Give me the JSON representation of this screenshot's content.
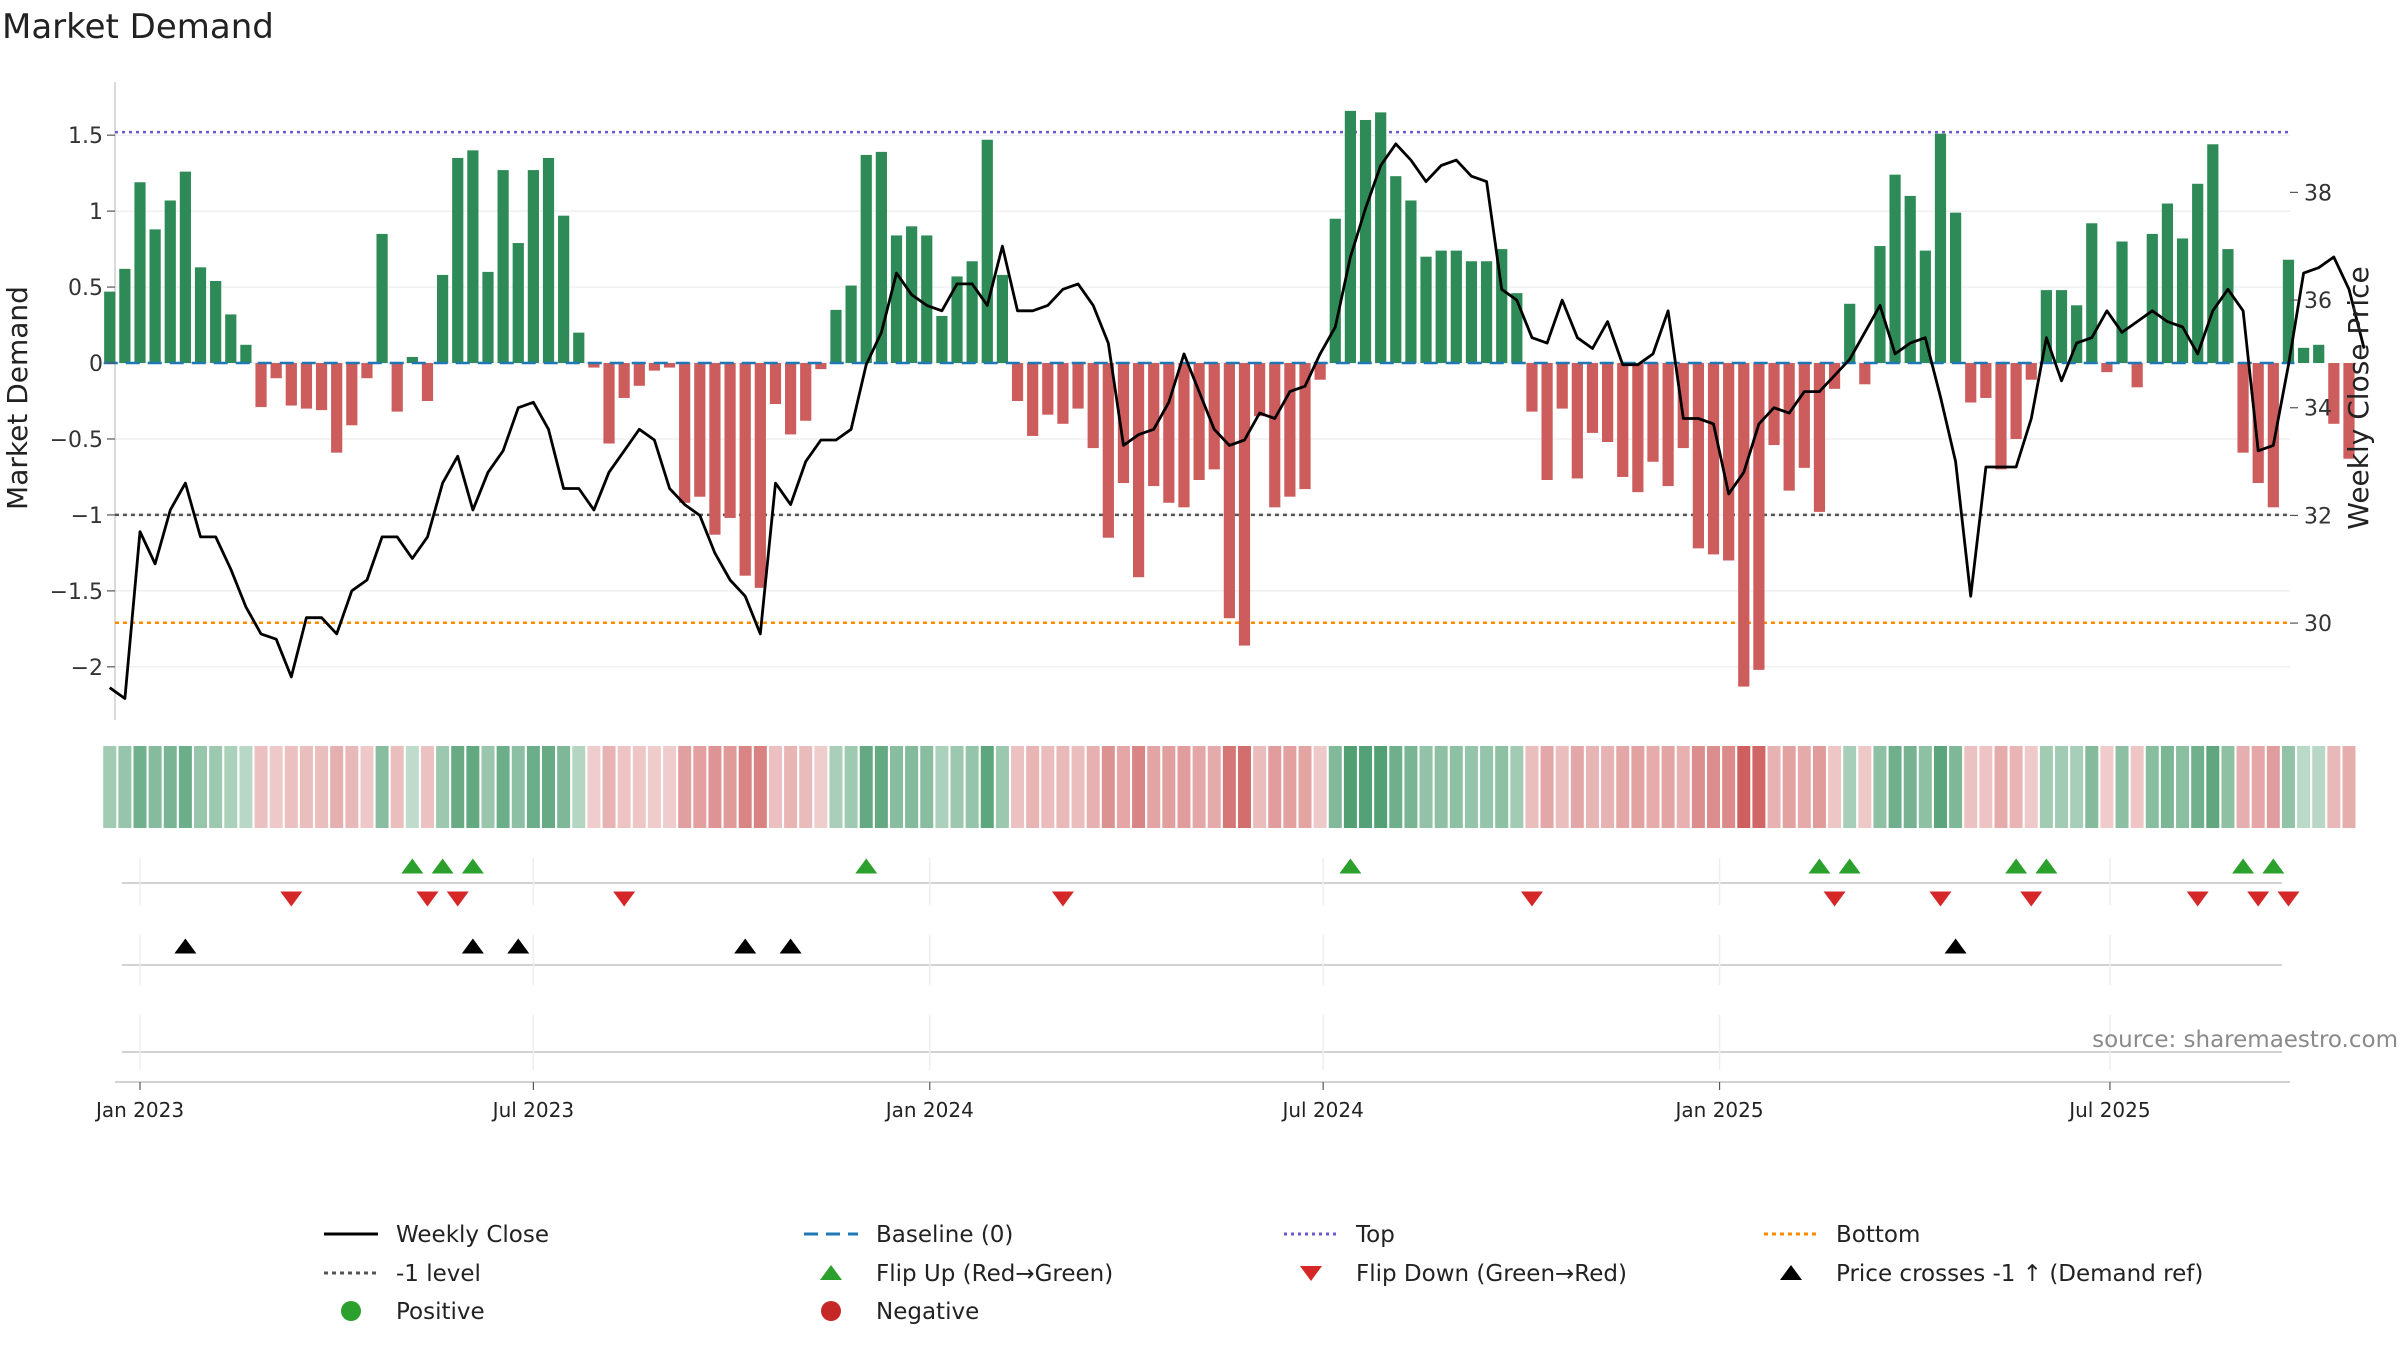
{
  "chart_data": {
    "type": "bar",
    "title": "Market Demand",
    "ylabel": "Market Demand",
    "y2label": "Weekly Close Price",
    "ylim": [
      -2.35,
      1.85
    ],
    "y2lim": [
      28.2,
      40.05
    ],
    "yticks": [
      {
        "v": 1.5,
        "label": "1.5"
      },
      {
        "v": 1,
        "label": "1"
      },
      {
        "v": 0.5,
        "label": "0.5"
      },
      {
        "v": 0,
        "label": "0"
      },
      {
        "v": -0.5,
        "label": "−0.5"
      },
      {
        "v": -1,
        "label": "−1"
      },
      {
        "v": -1.5,
        "label": "−1.5"
      },
      {
        "v": -2,
        "label": "−2"
      }
    ],
    "y2ticks": [
      {
        "v": 38,
        "label": "38"
      },
      {
        "v": 36,
        "label": "36"
      },
      {
        "v": 34,
        "label": "34"
      },
      {
        "v": 32,
        "label": "32"
      },
      {
        "v": 30,
        "label": "30"
      }
    ],
    "x_start_week": -2,
    "x_end_week": 142,
    "date_ticks": [
      {
        "week": 0,
        "label": "Jan 2023"
      },
      {
        "week": 26,
        "label": "Jul 2023"
      },
      {
        "week": 52.2,
        "label": "Jan 2024"
      },
      {
        "week": 78.2,
        "label": "Jul 2024"
      },
      {
        "week": 104.4,
        "label": "Jan 2025"
      },
      {
        "week": 130.2,
        "label": "Jul 2025"
      }
    ],
    "top_level": 1.52,
    "bottom_level": -1.71,
    "minus_one_level": -1,
    "demand": [
      0.47,
      0.62,
      1.19,
      0.88,
      1.07,
      1.26,
      0.63,
      0.54,
      0.32,
      0.12,
      -0.29,
      -0.1,
      -0.28,
      -0.3,
      -0.31,
      -0.59,
      -0.41,
      -0.1,
      0.85,
      -0.32,
      0.04,
      -0.25,
      0.58,
      1.35,
      1.4,
      0.6,
      1.27,
      0.79,
      1.27,
      1.35,
      0.97,
      0.2,
      -0.03,
      -0.53,
      -0.23,
      -0.15,
      -0.05,
      -0.03,
      -0.92,
      -0.88,
      -1.13,
      -1.02,
      -1.4,
      -1.48,
      -0.27,
      -0.47,
      -0.38,
      -0.04,
      0.35,
      0.51,
      1.37,
      1.39,
      0.84,
      0.9,
      0.84,
      0.31,
      0.57,
      0.67,
      1.47,
      0.58,
      -0.25,
      -0.48,
      -0.34,
      -0.4,
      -0.3,
      -0.56,
      -1.15,
      -0.79,
      -1.41,
      -0.81,
      -0.92,
      -0.95,
      -0.77,
      -0.7,
      -1.68,
      -1.86,
      -0.35,
      -0.95,
      -0.88,
      -0.83,
      -0.11,
      0.95,
      1.66,
      1.6,
      1.65,
      1.23,
      1.07,
      0.7,
      0.74,
      0.74,
      0.67,
      0.67,
      0.75,
      0.46,
      -0.32,
      -0.77,
      -0.3,
      -0.76,
      -0.46,
      -0.52,
      -0.75,
      -0.85,
      -0.65,
      -0.81,
      -0.56,
      -1.22,
      -1.26,
      -1.3,
      -2.13,
      -2.02,
      -0.54,
      -0.84,
      -0.69,
      -0.98,
      -0.17,
      0.39,
      -0.14,
      0.77,
      1.24,
      1.1,
      0.74,
      1.51,
      0.99,
      -0.26,
      -0.23,
      -0.7,
      -0.5,
      -0.11,
      0.48,
      0.48,
      0.38,
      0.92,
      -0.06,
      0.8,
      -0.16,
      0.85,
      1.05,
      0.82,
      1.18,
      1.44,
      0.75,
      -0.59,
      -0.79,
      -0.95,
      0.68,
      0.1,
      0.12,
      -0.4,
      -0.63
    ],
    "close": [
      28.8,
      28.6,
      31.7,
      31.1,
      32.1,
      32.6,
      31.6,
      31.6,
      31.0,
      30.3,
      29.8,
      29.7,
      29.0,
      30.1,
      30.1,
      29.8,
      30.6,
      30.8,
      31.6,
      31.6,
      31.2,
      31.6,
      32.6,
      33.1,
      32.1,
      32.8,
      33.2,
      34.0,
      34.1,
      33.6,
      32.5,
      32.5,
      32.1,
      32.8,
      33.2,
      33.6,
      33.4,
      32.5,
      32.2,
      32.0,
      31.3,
      30.8,
      30.5,
      29.8,
      32.6,
      32.2,
      33.0,
      33.4,
      33.4,
      33.6,
      34.8,
      35.4,
      36.5,
      36.1,
      35.9,
      35.8,
      36.3,
      36.3,
      35.9,
      37.0,
      35.8,
      35.8,
      35.9,
      36.2,
      36.3,
      35.9,
      35.2,
      33.3,
      33.5,
      33.6,
      34.1,
      35.0,
      34.3,
      33.6,
      33.3,
      33.4,
      33.9,
      33.8,
      34.3,
      34.4,
      35.0,
      35.5,
      36.8,
      37.7,
      38.5,
      38.9,
      38.6,
      38.2,
      38.5,
      38.6,
      38.3,
      38.2,
      36.2,
      36.0,
      35.3,
      35.2,
      36.0,
      35.3,
      35.1,
      35.6,
      34.8,
      34.8,
      35.0,
      35.8,
      33.8,
      33.8,
      33.7,
      32.4,
      32.8,
      33.7,
      34.0,
      33.9,
      34.3,
      34.3,
      34.6,
      34.9,
      35.4,
      35.9,
      35.0,
      35.2,
      35.3,
      34.2,
      33.0,
      30.5,
      32.9,
      32.9,
      32.9,
      33.8,
      35.3,
      34.5,
      35.2,
      35.3,
      35.8,
      35.4,
      35.6,
      35.8,
      35.6,
      35.5,
      35.0,
      35.8,
      36.2,
      35.8,
      33.2,
      33.3,
      34.8,
      36.5,
      36.6,
      36.8,
      36.2,
      35.1
    ],
    "flip_up": [
      18,
      20,
      22,
      48,
      80,
      111,
      113,
      124,
      126,
      139,
      141
    ],
    "flip_down": [
      10,
      19,
      21,
      32,
      61,
      92,
      112,
      119,
      125,
      136,
      140,
      142
    ],
    "price_cross": [
      3,
      22,
      25,
      40,
      43,
      120
    ],
    "source": "source: sharemaestro.com",
    "legend": [
      {
        "key": "close",
        "label": "Weekly Close"
      },
      {
        "key": "baseline",
        "label": "Baseline (0)"
      },
      {
        "key": "top",
        "label": "Top"
      },
      {
        "key": "bottom",
        "label": "Bottom"
      },
      {
        "key": "minus1",
        "label": "-1 level"
      },
      {
        "key": "flipup",
        "label": "Flip Up (Red→Green)"
      },
      {
        "key": "flipdown",
        "label": "Flip Down (Green→Red)"
      },
      {
        "key": "cross",
        "label": "Price crosses -1 ↑ (Demand ref)"
      },
      {
        "key": "positive",
        "label": "Positive"
      },
      {
        "key": "negative",
        "label": "Negative"
      }
    ],
    "colors": {
      "positive_bar": "#2e8b57",
      "negative_bar": "#cd5c5c",
      "close_line": "#000000",
      "baseline": "#1f77b4",
      "top": "#6a5acd",
      "bottom": "#ff8c00",
      "minus_one": "#555555",
      "flip_up": "#2ca02c",
      "flip_down": "#d62728",
      "legend_positive": "#2ca02c",
      "legend_negative": "#c62828"
    }
  }
}
